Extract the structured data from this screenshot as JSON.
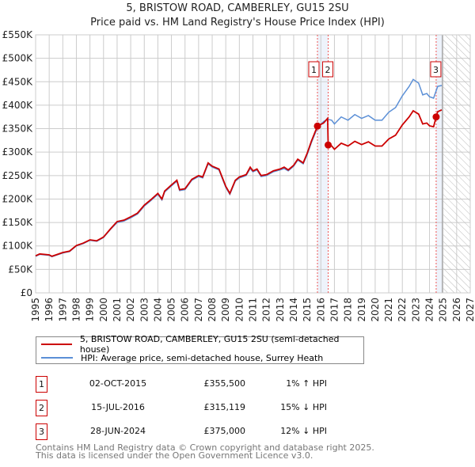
{
  "chart_data": {
    "type": "line",
    "title": "5, BRISTOW ROAD, CAMBERLEY, GU15 2SU",
    "subtitle": "Price paid vs. HM Land Registry's House Price Index (HPI)",
    "xlim": [
      1995,
      2027
    ],
    "ylim": [
      0,
      550000
    ],
    "x_ticks": [
      "1995",
      "1996",
      "1997",
      "1998",
      "1999",
      "2000",
      "2001",
      "2002",
      "2003",
      "2004",
      "2005",
      "2006",
      "2007",
      "2008",
      "2009",
      "2010",
      "2011",
      "2012",
      "2013",
      "2014",
      "2015",
      "2016",
      "2017",
      "2018",
      "2019",
      "2020",
      "2021",
      "2022",
      "2023",
      "2024",
      "2025",
      "2026",
      "2027"
    ],
    "y_ticks": [
      "£0",
      "£50K",
      "£100K",
      "£150K",
      "£200K",
      "£250K",
      "£300K",
      "£350K",
      "£400K",
      "£450K",
      "£500K",
      "£550K"
    ],
    "grid": true,
    "forecast_hatch_from": 2025.0,
    "series": [
      {
        "name": "HPI: Average price, semi-detached house, Surrey Heath",
        "color": "#5b8fd6",
        "x": [
          1995,
          1995.3,
          1996,
          1996.2,
          1996.5,
          1997,
          1997.5,
          1998,
          1998.5,
          1999,
          1999.5,
          2000,
          2000.5,
          2001,
          2001.5,
          2002,
          2002.5,
          2003,
          2003.5,
          2004,
          2004.3,
          2004.5,
          2005,
          2005.4,
          2005.6,
          2006,
          2006.5,
          2007,
          2007.3,
          2007.7,
          2008,
          2008.5,
          2009,
          2009.3,
          2009.7,
          2010,
          2010.5,
          2010.8,
          2011,
          2011.3,
          2011.6,
          2012,
          2012.5,
          2013,
          2013.3,
          2013.6,
          2014,
          2014.3,
          2014.7,
          2015,
          2015.3,
          2015.75,
          2016.2,
          2016.5,
          2016.8,
          2017,
          2017.5,
          2018,
          2018.5,
          2019,
          2019.5,
          2020,
          2020.5,
          2021,
          2021.5,
          2022,
          2022.5,
          2022.8,
          2023.2,
          2023.5,
          2023.8,
          2024,
          2024.3,
          2024.6,
          2024.9
        ],
        "y": [
          78000,
          82000,
          80000,
          77000,
          80000,
          85000,
          88000,
          100000,
          105000,
          112000,
          110000,
          118000,
          135000,
          150000,
          153000,
          160000,
          168000,
          185000,
          197000,
          210000,
          198000,
          215000,
          228000,
          238000,
          218000,
          220000,
          240000,
          248000,
          245000,
          275000,
          268000,
          262000,
          225000,
          210000,
          238000,
          245000,
          250000,
          265000,
          258000,
          262000,
          248000,
          250000,
          258000,
          262000,
          265000,
          260000,
          270000,
          283000,
          275000,
          295000,
          320000,
          352000,
          365000,
          370000,
          368000,
          360000,
          375000,
          368000,
          380000,
          372000,
          378000,
          368000,
          368000,
          385000,
          395000,
          420000,
          440000,
          455000,
          447000,
          422000,
          425000,
          418000,
          415000,
          440000,
          442000
        ]
      },
      {
        "name": "5, BRISTOW ROAD, CAMBERLEY, GU15 2SU (semi-detached house)",
        "color": "#cc0000",
        "x": [
          1995,
          1995.3,
          1996,
          1996.2,
          1996.5,
          1997,
          1997.5,
          1998,
          1998.5,
          1999,
          1999.5,
          2000,
          2000.5,
          2001,
          2001.5,
          2002,
          2002.5,
          2003,
          2003.5,
          2004,
          2004.3,
          2004.5,
          2005,
          2005.4,
          2005.6,
          2006,
          2006.5,
          2007,
          2007.3,
          2007.7,
          2008,
          2008.5,
          2009,
          2009.3,
          2009.7,
          2010,
          2010.5,
          2010.8,
          2011,
          2011.3,
          2011.6,
          2012,
          2012.5,
          2013,
          2013.3,
          2013.6,
          2014,
          2014.3,
          2014.7,
          2015,
          2015.3,
          2015.75,
          2016.2,
          2016.5,
          2016.54,
          2016.8,
          2017,
          2017.5,
          2018,
          2018.5,
          2019,
          2019.5,
          2020,
          2020.5,
          2021,
          2021.5,
          2022,
          2022.5,
          2022.8,
          2023.2,
          2023.5,
          2023.8,
          2024,
          2024.3,
          2024.49,
          2024.6,
          2024.9
        ],
        "y": [
          79000,
          83000,
          81000,
          78000,
          81000,
          86000,
          89000,
          101000,
          106000,
          113000,
          111000,
          119000,
          136000,
          152000,
          155000,
          162000,
          170000,
          187000,
          199000,
          212000,
          200000,
          217000,
          230000,
          240000,
          220000,
          222000,
          242000,
          250000,
          247000,
          277000,
          270000,
          264000,
          227000,
          212000,
          240000,
          247000,
          252000,
          268000,
          260000,
          264000,
          250000,
          252000,
          260000,
          264000,
          268000,
          262000,
          272000,
          285000,
          277000,
          298000,
          323000,
          355500,
          362000,
          372000,
          315119,
          313000,
          306000,
          319000,
          313000,
          323000,
          316000,
          322000,
          313000,
          313000,
          328000,
          336000,
          358000,
          375000,
          388000,
          381000,
          360000,
          362000,
          356000,
          354000,
          375000,
          386000,
          390000
        ]
      }
    ],
    "transactions": [
      {
        "id": "1",
        "date": "02-OCT-2015",
        "x": 2015.75,
        "price_value": 355500,
        "price": "£355,500",
        "hpi": "1% ↑ HPI"
      },
      {
        "id": "2",
        "date": "15-JUL-2016",
        "x": 2016.54,
        "price_value": 315119,
        "price": "£315,119",
        "hpi": "15% ↓ HPI"
      },
      {
        "id": "3",
        "date": "28-JUN-2024",
        "x": 2024.49,
        "price_value": 375000,
        "price": "£375,000",
        "hpi": "12% ↓ HPI"
      }
    ]
  },
  "legend": {
    "property": "5, BRISTOW ROAD, CAMBERLEY, GU15 2SU (semi-detached house)",
    "hpi": "HPI: Average price, semi-detached house, Surrey Heath"
  },
  "footer": {
    "line1": "Contains HM Land Registry data © Crown copyright and database right 2025.",
    "line2": "This data is licensed under the Open Government Licence v3.0."
  }
}
